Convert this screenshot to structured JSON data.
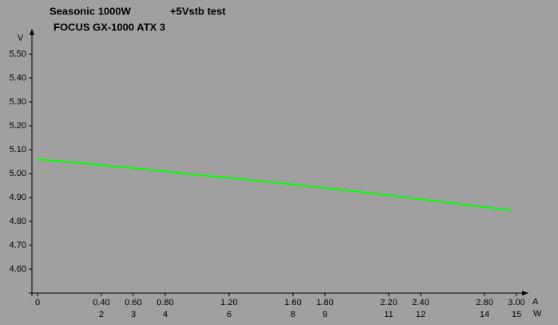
{
  "chart_data": {
    "type": "line",
    "title": "Seasonic 1000W",
    "subtitle": "+5Vstb test",
    "model": "FOCUS GX-1000 ATX 3",
    "y_label": "V",
    "x_label": "A",
    "x2_label": "W",
    "x": [
      0,
      0.3,
      0.6,
      0.9,
      1.2,
      1.5,
      1.8,
      2.1,
      2.4,
      2.7,
      2.97
    ],
    "series": [
      {
        "color": "#00ff00",
        "values": [
          5.06,
          5.043,
          5.023,
          5.002,
          4.982,
          4.962,
          4.94,
          4.918,
          4.893,
          4.868,
          4.847
        ]
      }
    ],
    "xlim": [
      -0.035,
      3.065
    ],
    "xticks": [
      0,
      {
        "value": 0.4,
        "label": "0.40"
      },
      {
        "value": 0.6,
        "label": "0.60"
      },
      {
        "value": 0.8,
        "label": "0.80"
      },
      {
        "value": 1.2,
        "label": "1.20"
      },
      {
        "value": 1.6,
        "label": "1.60"
      },
      {
        "value": 1.8,
        "label": "1.80"
      },
      {
        "value": 2.2,
        "label": "2.20"
      },
      {
        "value": 2.4,
        "label": "2.40"
      },
      {
        "value": 2.8,
        "label": "2.80"
      },
      {
        "value": 3.0,
        "label": "3.00"
      }
    ],
    "x2lim": [
      -0.175,
      15.325
    ],
    "x2ticks": [
      2,
      3,
      4,
      6,
      8,
      9,
      11,
      12,
      14,
      15
    ],
    "ylim": [
      4.5,
      5.6
    ],
    "yticks": [
      {
        "value": 4.6,
        "label": "4.60"
      },
      {
        "value": 4.7,
        "label": "4.70"
      },
      {
        "value": 4.8,
        "label": "4.80"
      },
      {
        "value": 4.9,
        "label": "4.90"
      },
      {
        "value": 5.0,
        "label": "5.00"
      },
      {
        "value": 5.1,
        "label": "5.10"
      },
      {
        "value": 5.2,
        "label": "5.20"
      },
      {
        "value": 5.3,
        "label": "5.30"
      },
      {
        "value": 5.4,
        "label": "5.40"
      },
      {
        "value": 5.5,
        "label": "5.50"
      }
    ]
  }
}
